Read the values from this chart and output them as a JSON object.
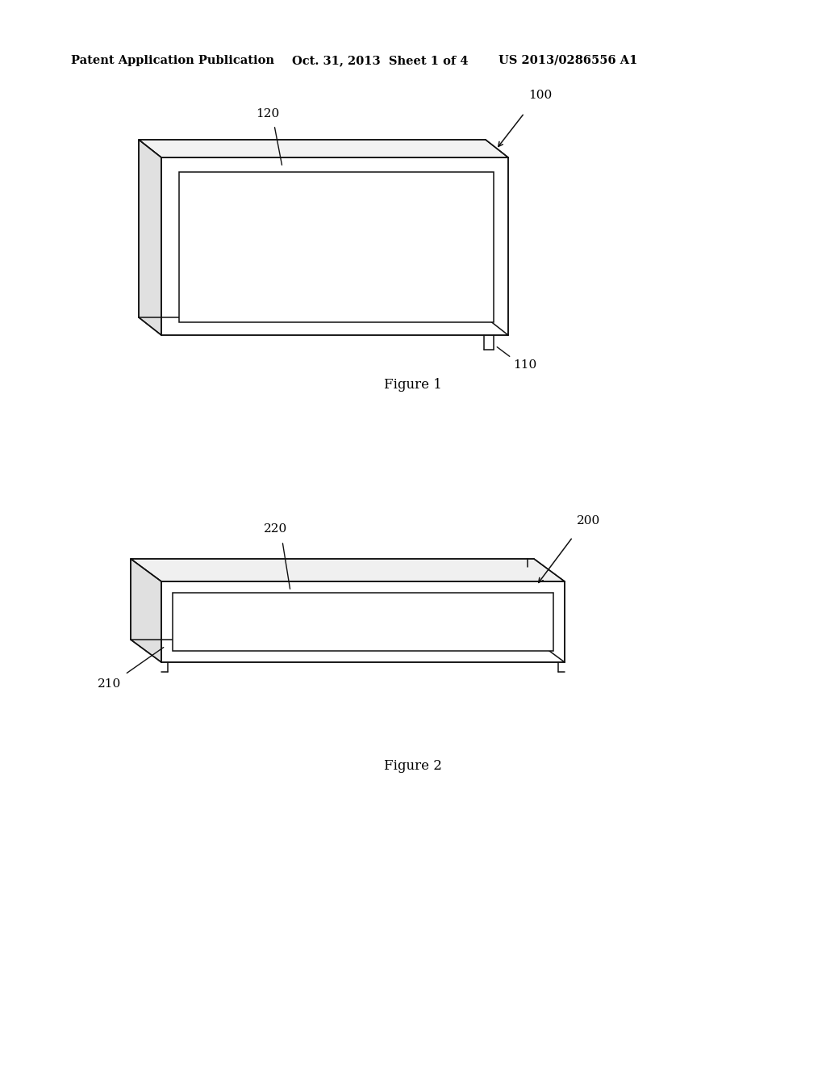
{
  "background_color": "#ffffff",
  "header_left": "Patent Application Publication",
  "header_mid": "Oct. 31, 2013  Sheet 1 of 4",
  "header_right": "US 2013/0286556 A1",
  "fig1_caption": "Figure 1",
  "fig2_caption": "Figure 2",
  "line_color": "#111111",
  "lw": 1.1
}
